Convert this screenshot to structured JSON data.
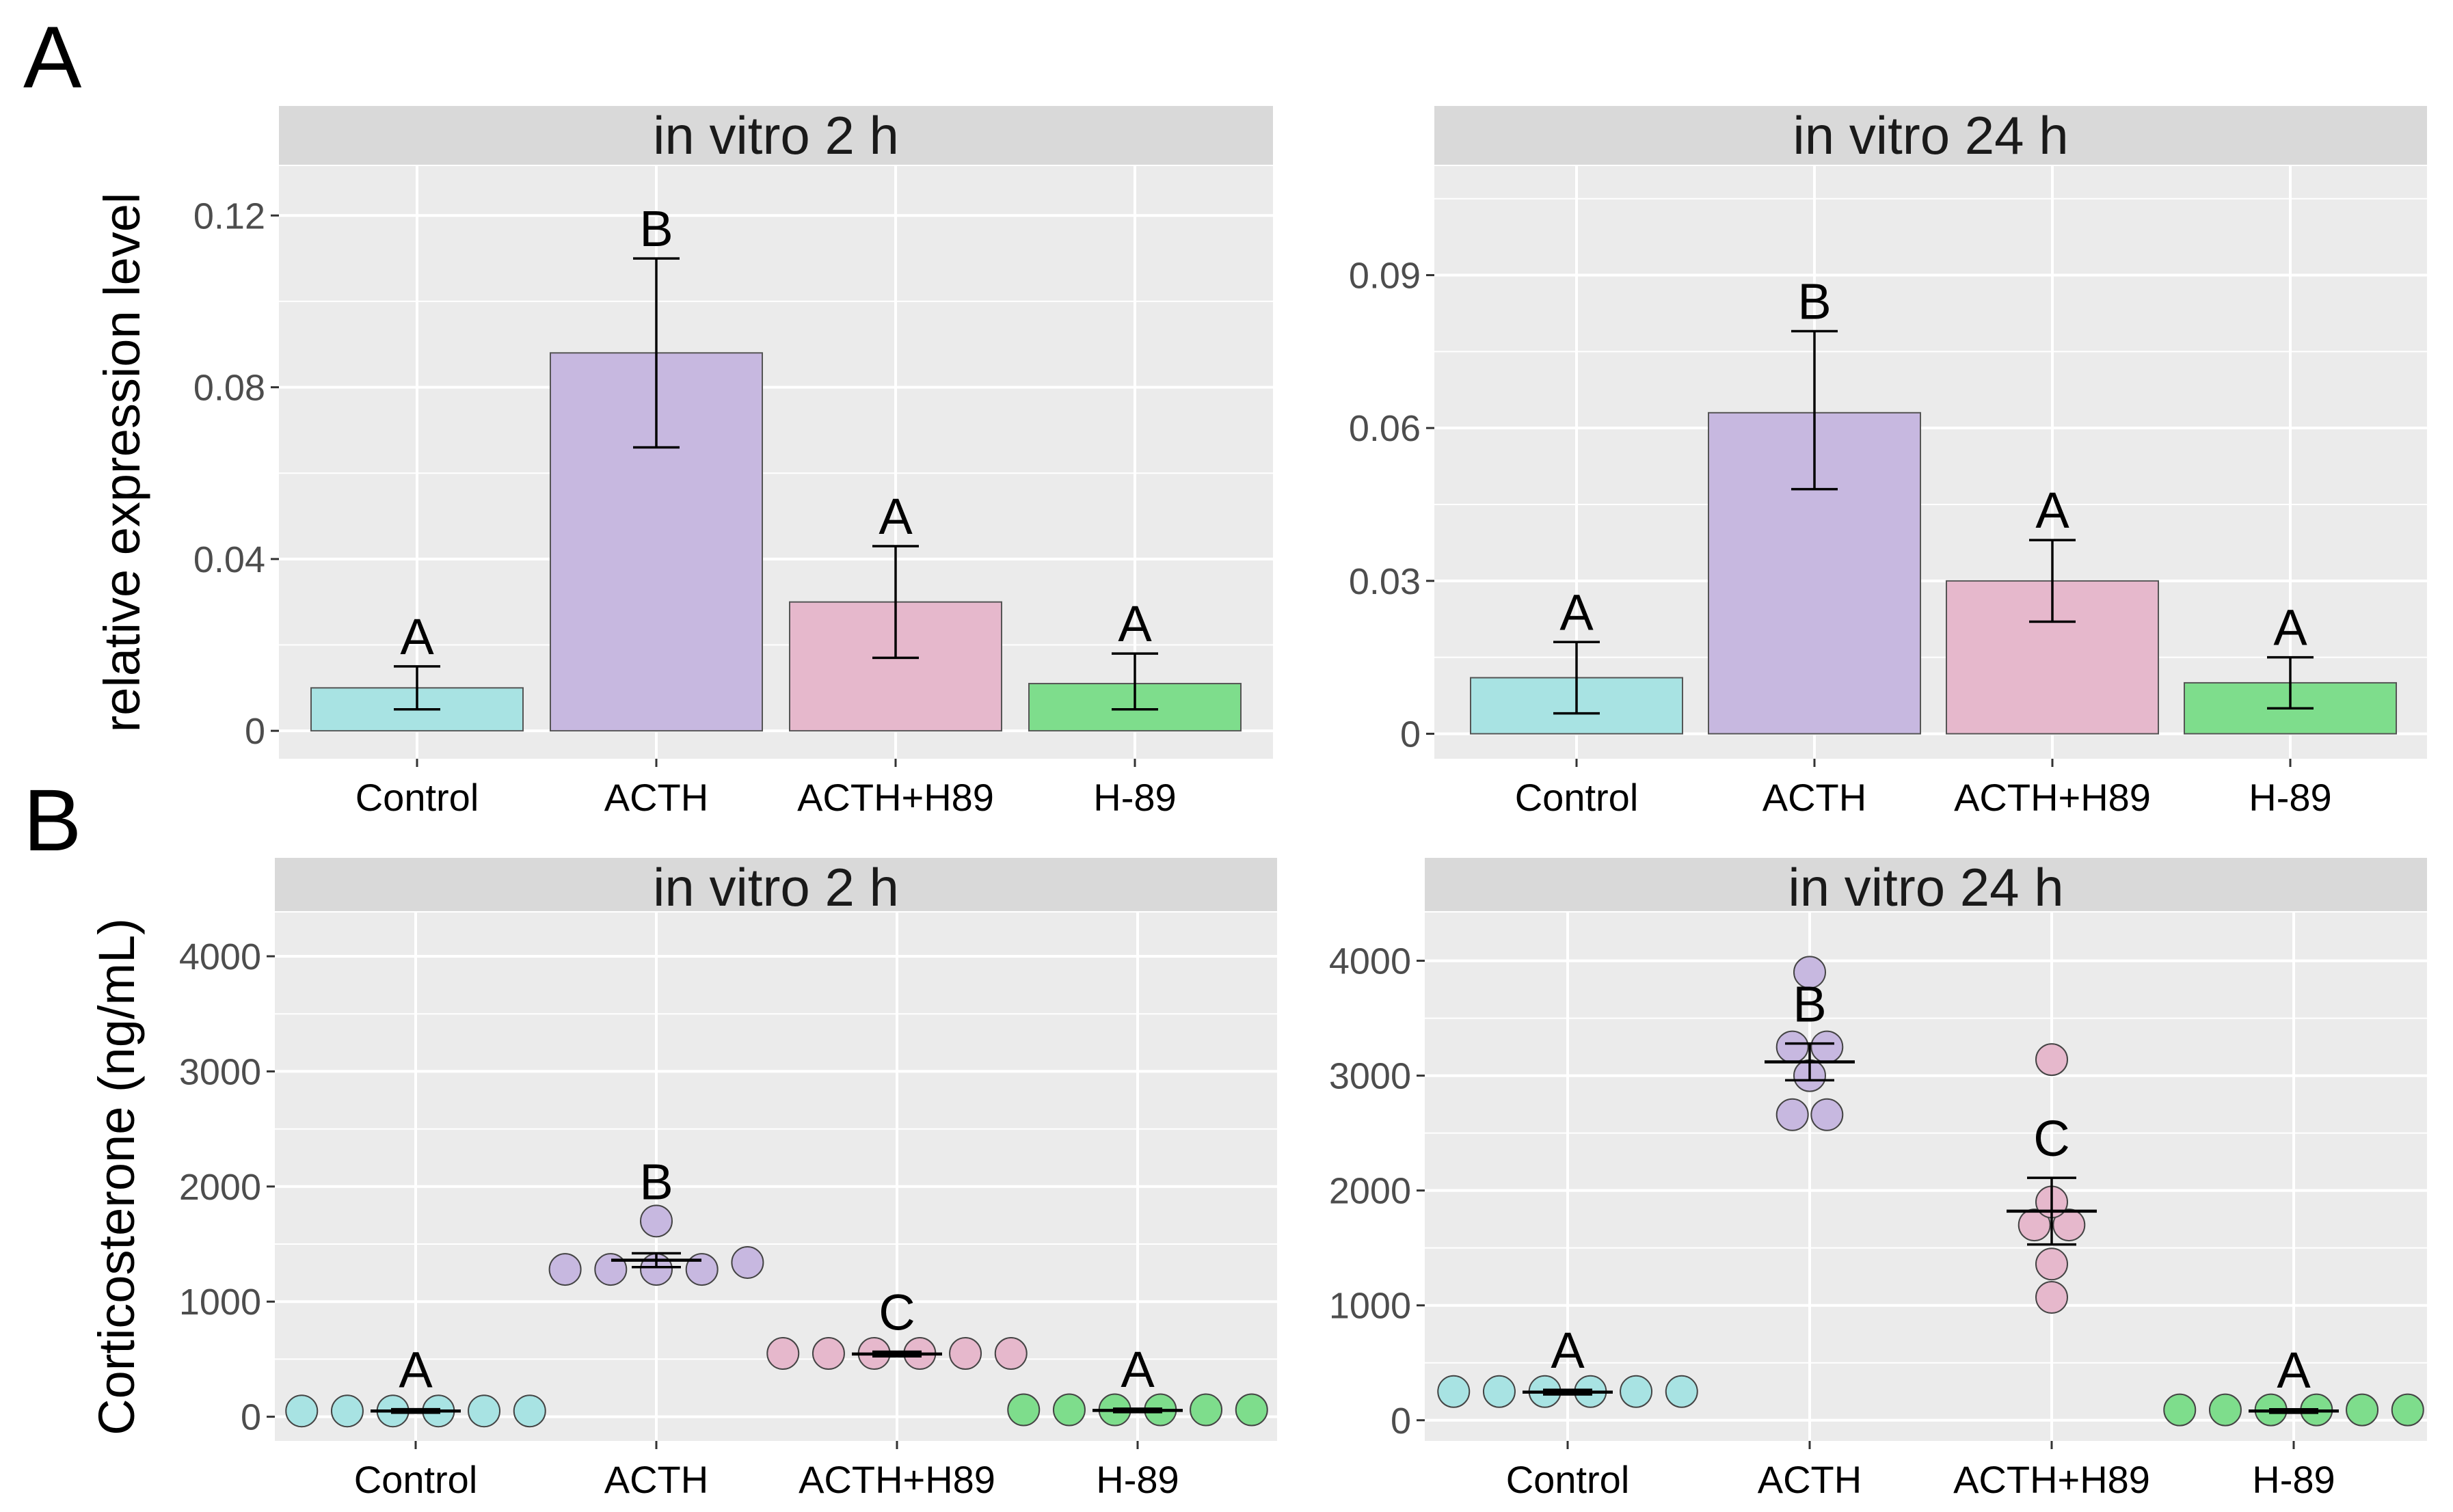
{
  "figure": {
    "panel_labels": [
      "A",
      "B"
    ],
    "colors": {
      "panel_bg": "#ebebeb",
      "strip_bg": "#d9d9d9",
      "grid": "#ffffff",
      "tick_text": "#4d4d4d",
      "Control": "#a8e3e3",
      "ACTH": "#c7b8e0",
      "ACTH+H89": "#e6b8cc",
      "H-89": "#7edd8c"
    }
  },
  "chart_data": [
    {
      "id": "A-2h",
      "type": "bar",
      "title": "in vitro 2 h",
      "ylabel": "relative expression level",
      "categories": [
        "Control",
        "ACTH",
        "ACTH+H89",
        "H-89"
      ],
      "values": [
        0.01,
        0.088,
        0.03,
        0.011
      ],
      "err_low": [
        0.005,
        0.066,
        0.017,
        0.005
      ],
      "err_high": [
        0.015,
        0.11,
        0.043,
        0.018
      ],
      "letters": [
        "A",
        "B",
        "A",
        "A"
      ],
      "yticks": [
        0,
        0.04,
        0.08,
        0.12
      ],
      "ytick_labels": [
        "0",
        "0.04",
        "0.08",
        "0.12"
      ],
      "ylim": [
        -0.0065,
        0.1315
      ]
    },
    {
      "id": "A-24h",
      "type": "bar",
      "title": "in vitro 24 h",
      "ylabel": "",
      "categories": [
        "Control",
        "ACTH",
        "ACTH+H89",
        "H-89"
      ],
      "values": [
        0.011,
        0.063,
        0.03,
        0.01
      ],
      "err_low": [
        0.004,
        0.048,
        0.022,
        0.005
      ],
      "err_high": [
        0.018,
        0.079,
        0.038,
        0.015
      ],
      "letters": [
        "A",
        "B",
        "A",
        "A"
      ],
      "yticks": [
        0,
        0.03,
        0.06,
        0.09
      ],
      "ytick_labels": [
        "0",
        "0.03",
        "0.06",
        "0.09"
      ],
      "ylim": [
        -0.0049,
        0.1114
      ]
    },
    {
      "id": "B-2h",
      "type": "scatter",
      "title": "in vitro 2 h",
      "ylabel": "Corticosterone (ng/mL)",
      "categories": [
        "Control",
        "ACTH",
        "ACTH+H89",
        "H-89"
      ],
      "points": [
        [
          50,
          50,
          50,
          50,
          50,
          50
        ],
        [
          1280,
          1280,
          1280,
          1280,
          1340,
          1700
        ],
        [
          550,
          550,
          550,
          550,
          550,
          550
        ],
        [
          60,
          60,
          60,
          60,
          60,
          60
        ]
      ],
      "means": [
        50,
        1360,
        545,
        55
      ],
      "err_low": [
        35,
        1300,
        525,
        40
      ],
      "err_high": [
        65,
        1420,
        565,
        70
      ],
      "letters": [
        "A",
        "B",
        "C",
        "A"
      ],
      "yticks": [
        0,
        1000,
        2000,
        3000,
        4000
      ],
      "ytick_labels": [
        "0",
        "1000",
        "2000",
        "3000",
        "4000"
      ],
      "ylim": [
        -210,
        4380
      ]
    },
    {
      "id": "B-24h",
      "type": "scatter",
      "title": "in vitro 24 h",
      "ylabel": "",
      "categories": [
        "Control",
        "ACTH",
        "ACTH+H89",
        "H-89"
      ],
      "points": [
        [
          250,
          250,
          250,
          250,
          250,
          250
        ],
        [
          2660,
          2660,
          3000,
          3250,
          3250,
          3900
        ],
        [
          1070,
          1360,
          1700,
          1700,
          1900,
          3140
        ],
        [
          90,
          90,
          90,
          90,
          90,
          90
        ]
      ],
      "means": [
        245,
        3120,
        1820,
        80
      ],
      "err_low": [
        225,
        2960,
        1530,
        65
      ],
      "err_high": [
        265,
        3280,
        2110,
        95
      ],
      "letters": [
        "A",
        "B",
        "C",
        "A"
      ],
      "yticks": [
        0,
        1000,
        2000,
        3000,
        4000
      ],
      "ytick_labels": [
        "0",
        "1000",
        "2000",
        "3000",
        "4000"
      ],
      "ylim": [
        -180,
        4420
      ]
    }
  ]
}
